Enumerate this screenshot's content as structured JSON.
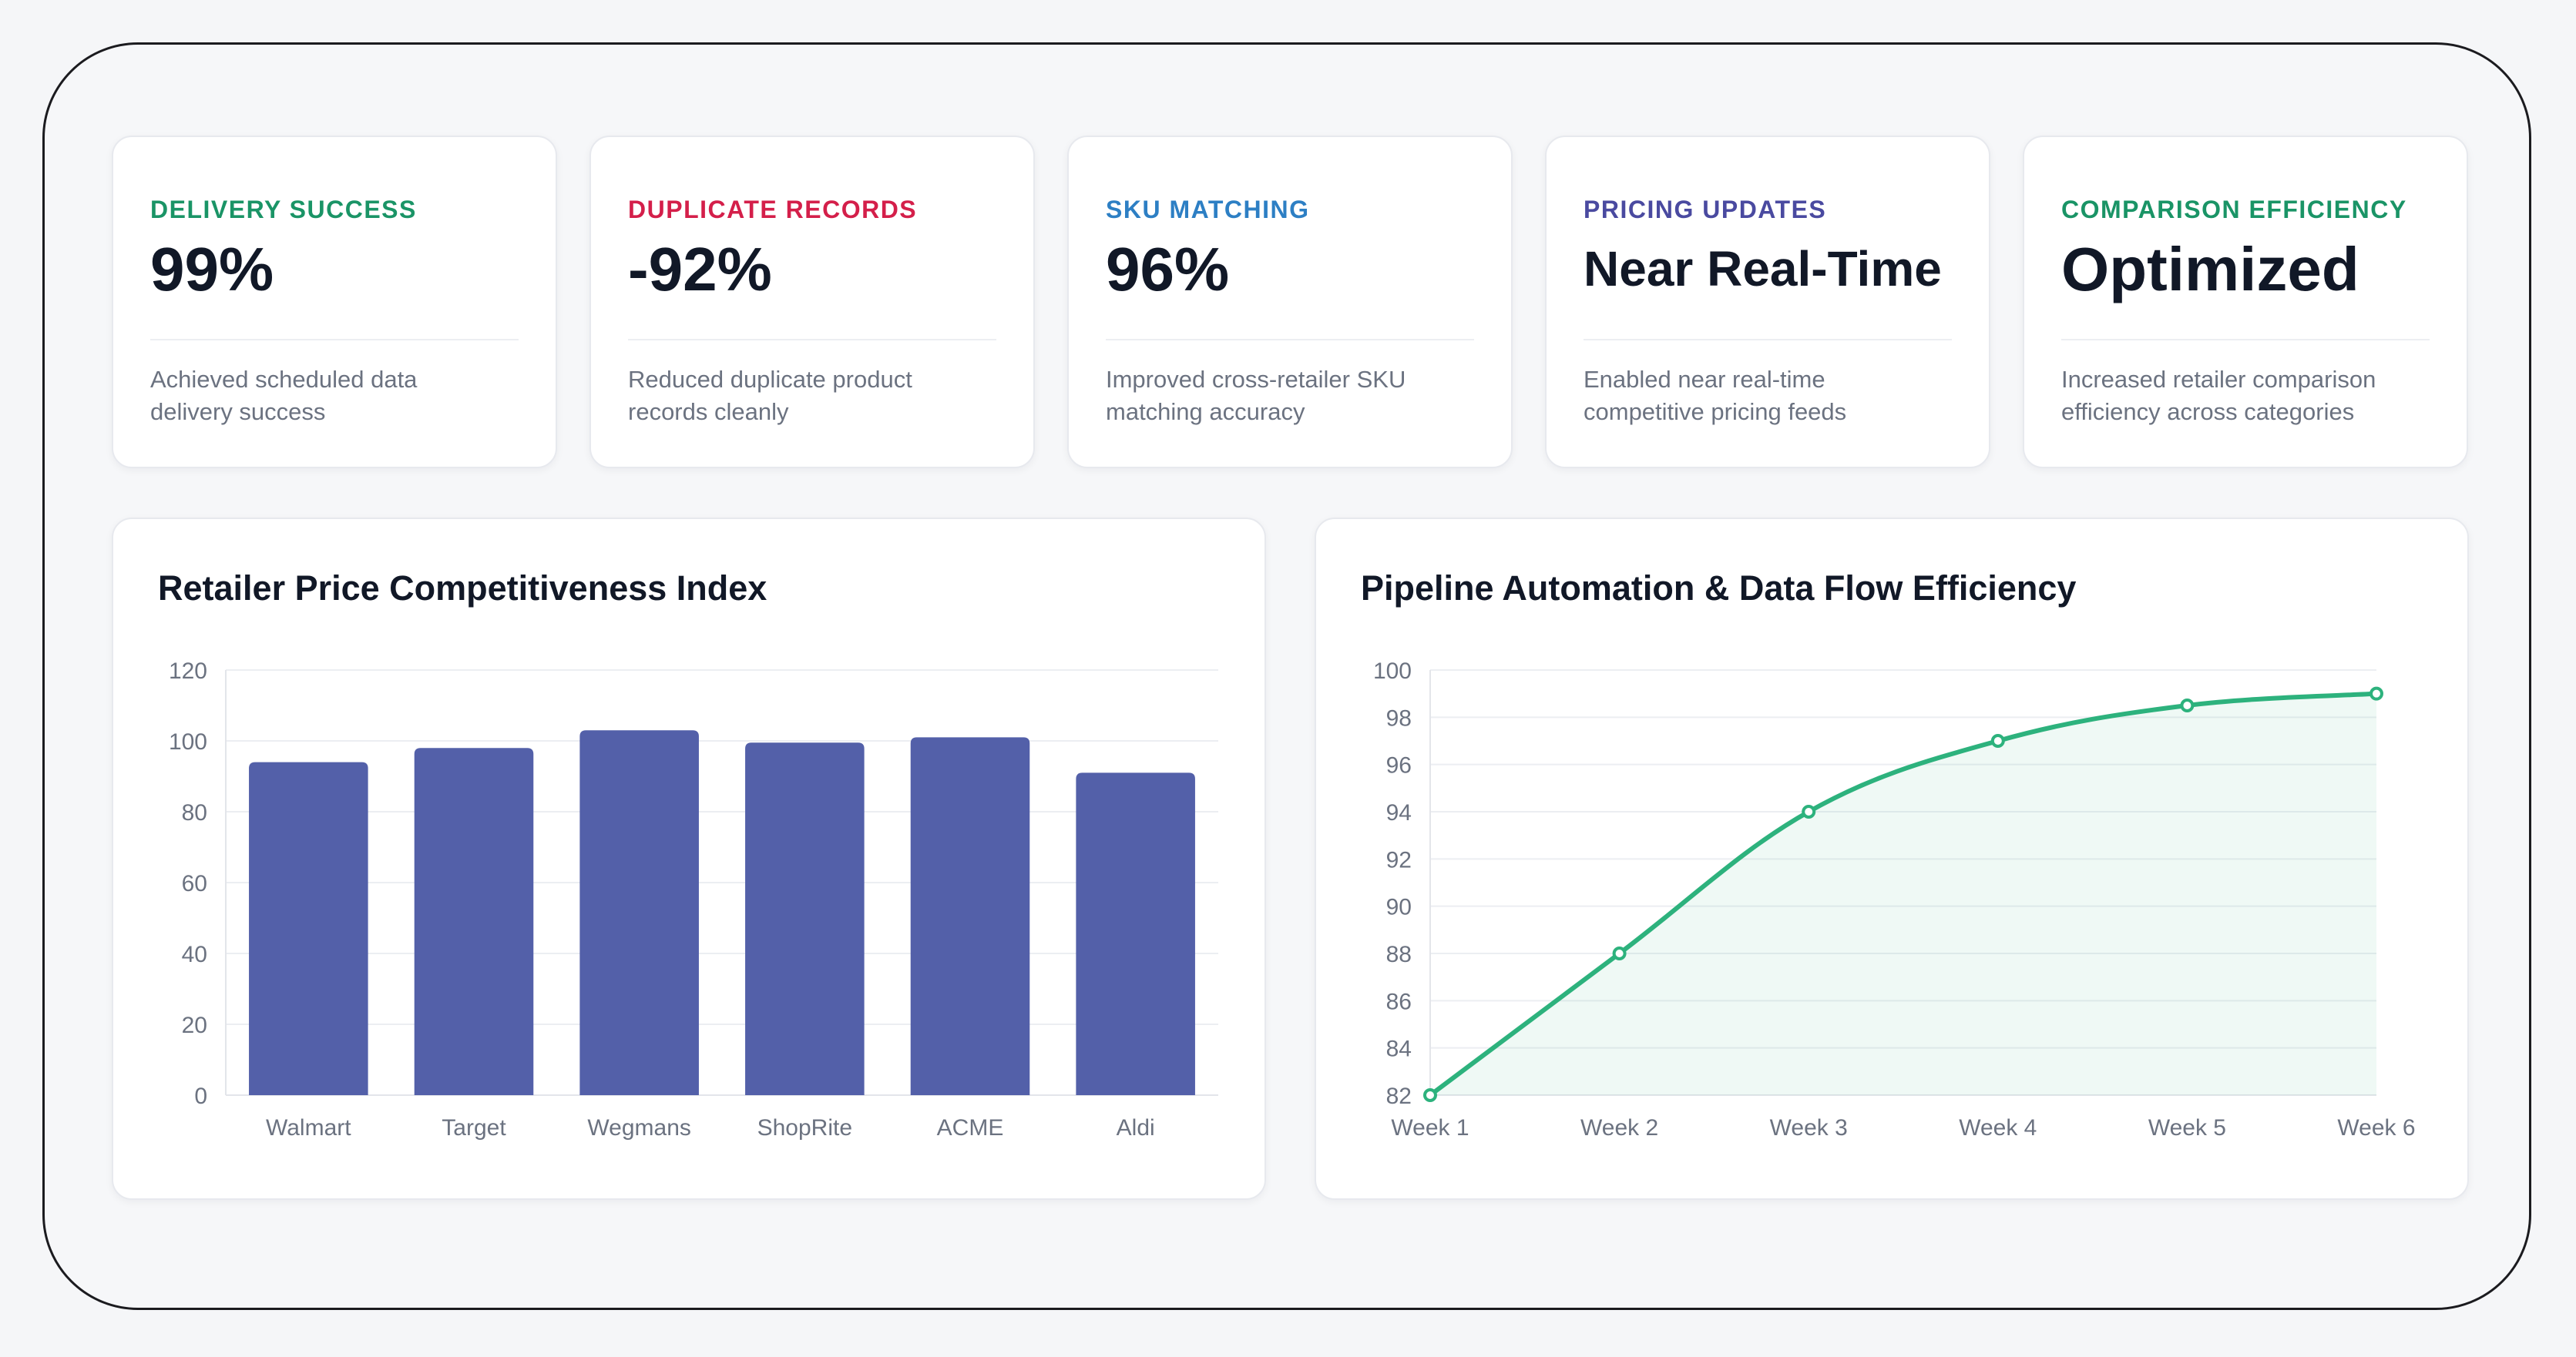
{
  "kpis": [
    {
      "label": "DELIVERY SUCCESS",
      "value": "99%",
      "description": "Achieved scheduled data delivery success",
      "color": "#1a9466"
    },
    {
      "label": "DUPLICATE RECORDS",
      "value": "-92%",
      "description": "Reduced duplicate product records cleanly",
      "color": "#d41f4a"
    },
    {
      "label": "SKU MATCHING",
      "value": "96%",
      "description": "Improved cross-retailer SKU matching accuracy",
      "color": "#2d7fc4"
    },
    {
      "label": "PRICING UPDATES",
      "value": "Near Real-Time",
      "description": "Enabled near real-time competitive pricing feeds",
      "color": "#4a4aa0"
    },
    {
      "label": "COMPARISON EFFICIENCY",
      "value": "Optimized",
      "description": "Increased retailer comparison efficiency across categories",
      "color": "#1a9466"
    }
  ],
  "chart_data": [
    {
      "type": "bar",
      "title": "Retailer Price Competitiveness Index",
      "categories": [
        "Walmart",
        "Target",
        "Wegmans",
        "ShopRite",
        "ACME",
        "Aldi"
      ],
      "values": [
        94,
        98,
        103,
        99.5,
        101,
        91
      ],
      "ylim": [
        0,
        120
      ],
      "yticks": [
        0,
        20,
        40,
        60,
        80,
        100,
        120
      ],
      "color": "#5360a9",
      "grid": true
    },
    {
      "type": "area",
      "title": "Pipeline Automation & Data Flow Efficiency",
      "x": [
        "Week 1",
        "Week 2",
        "Week 3",
        "Week 4",
        "Week 5",
        "Week 6"
      ],
      "values": [
        82,
        88,
        94,
        97,
        98.5,
        99
      ],
      "ylim": [
        82,
        100
      ],
      "yticks": [
        82,
        84,
        86,
        88,
        90,
        92,
        94,
        96,
        98,
        100
      ],
      "color": "#2db27d",
      "grid": true
    }
  ]
}
